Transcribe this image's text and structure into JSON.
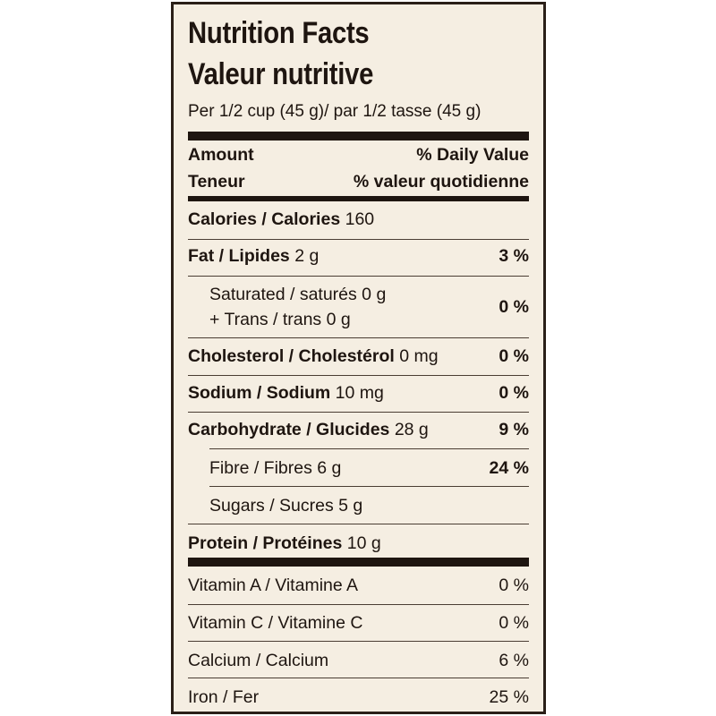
{
  "title": "Nutrition Facts",
  "title_fr": "Valeur nutritive",
  "serving": "Per 1/2 cup (45 g)/ par 1/2 tasse (45 g)",
  "header": {
    "amount": "Amount",
    "teneur": "Teneur",
    "dv": "% Daily Value",
    "vq": "% valeur quotidienne"
  },
  "calories": {
    "label": "Calories / Calories",
    "value": "160"
  },
  "fat": {
    "label": "Fat / Lipides",
    "amount": "2 g",
    "pct": "3 %"
  },
  "saturated": {
    "line1": "Saturated / saturés 0 g",
    "line2": "+ Trans / trans 0 g",
    "pct": "0 %"
  },
  "cholesterol": {
    "label": "Cholesterol / Cholestérol",
    "amount": "0 mg",
    "pct": "0 %"
  },
  "sodium": {
    "label": "Sodium / Sodium",
    "amount": "10 mg",
    "pct": "0 %"
  },
  "carbohydrate": {
    "label": "Carbohydrate / Glucides",
    "amount": "28 g",
    "pct": "9 %"
  },
  "fibre": {
    "label": "Fibre / Fibres 6 g",
    "pct": "24 %"
  },
  "sugars": {
    "label": "Sugars / Sucres 5 g"
  },
  "protein": {
    "label": "Protein / Protéines",
    "amount": "10 g"
  },
  "vitamins": [
    {
      "label": "Vitamin A / Vitamine A",
      "pct": "0 %"
    },
    {
      "label": "Vitamin C / Vitamine C",
      "pct": "0 %"
    },
    {
      "label": "Calcium / Calcium",
      "pct": "6 %"
    },
    {
      "label": "Iron / Fer",
      "pct": "25 %"
    }
  ]
}
